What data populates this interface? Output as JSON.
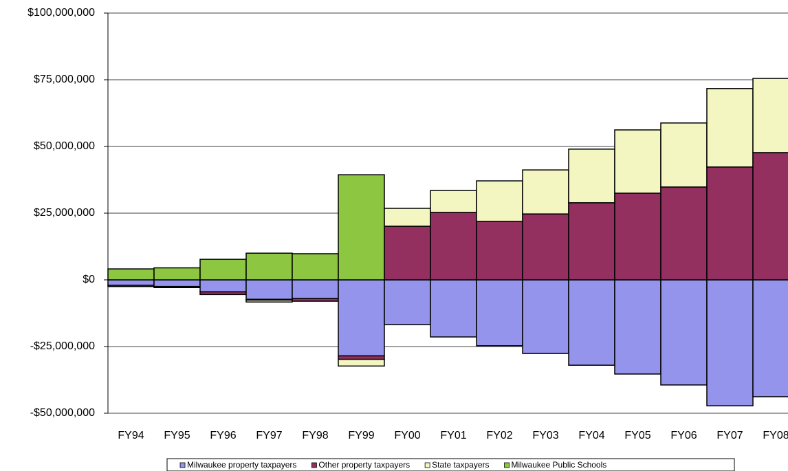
{
  "chart_data": {
    "type": "bar",
    "stacked": true,
    "categories": [
      "FY94",
      "FY95",
      "FY96",
      "FY97",
      "FY98",
      "FY99",
      "FY00",
      "FY01",
      "FY02",
      "FY03",
      "FY04",
      "FY05",
      "FY06",
      "FY07",
      "FY08"
    ],
    "series": [
      {
        "name": "Milwaukee property taxpayers",
        "color": "#9494ec",
        "values": [
          -2000000,
          -2500000,
          -4500000,
          -7300000,
          -7000000,
          -28500000,
          -16800000,
          -21400000,
          -24700000,
          -27600000,
          -32000000,
          -35300000,
          -39400000,
          -47200000,
          -43800000
        ]
      },
      {
        "name": "Other property taxpayers",
        "color": "#93305f",
        "values": [
          -500000,
          -400000,
          -1000000,
          -300000,
          -1000000,
          -1300000,
          20100000,
          25300000,
          21900000,
          24700000,
          28900000,
          32500000,
          34800000,
          42300000,
          47700000
        ]
      },
      {
        "name": "State taxpayers",
        "color": "#f4f6c2",
        "values": [
          0,
          0,
          0,
          -700000,
          0,
          -2500000,
          6700000,
          8200000,
          15200000,
          16500000,
          20100000,
          23700000,
          24000000,
          29400000,
          27800000
        ]
      },
      {
        "name": "Milwaukee Public Schools",
        "color": "#8dc641",
        "values": [
          4100000,
          4500000,
          7700000,
          10000000,
          9800000,
          39400000,
          0,
          0,
          0,
          0,
          0,
          0,
          0,
          0,
          0
        ]
      }
    ],
    "ylim": [
      -50000000,
      100000000
    ],
    "yticks": [
      {
        "value": -50000000,
        "label": "-$50,000,000"
      },
      {
        "value": -25000000,
        "label": "-$25,000,000"
      },
      {
        "value": 0,
        "label": "$0"
      },
      {
        "value": 25000000,
        "label": "$25,000,000"
      },
      {
        "value": 50000000,
        "label": "$50,000,000"
      },
      {
        "value": 75000000,
        "label": "$75,000,000"
      },
      {
        "value": 100000000,
        "label": "$100,000,000"
      }
    ],
    "grid": true,
    "legend": "bottom"
  }
}
